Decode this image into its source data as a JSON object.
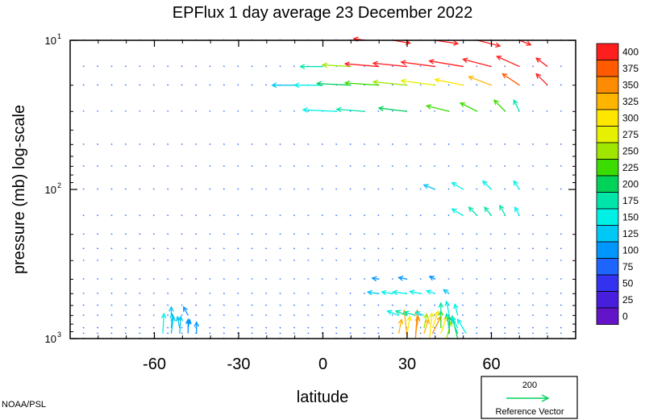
{
  "chart_data": {
    "type": "vector-field",
    "title": "EPFlux  1 day average  23 December  2022",
    "xlabel": "latitude",
    "ylabel": "pressure (mb)  log-scale",
    "x_ticks": [
      -60,
      -30,
      0,
      30,
      60
    ],
    "xlim": [
      -90,
      90
    ],
    "y_scale": "log",
    "y_ticks": [
      {
        "value": 10,
        "base": "10",
        "exp": "1"
      },
      {
        "value": 100,
        "base": "10",
        "exp": "2"
      },
      {
        "value": 1000,
        "base": "10",
        "exp": "3"
      }
    ],
    "ylim": [
      1000,
      10
    ],
    "levels": [
      1000,
      925,
      850,
      700,
      600,
      500,
      400,
      300,
      250,
      200,
      150,
      100,
      70,
      50,
      30,
      20,
      15,
      10
    ],
    "colorbar": {
      "labels": [
        "400",
        "375",
        "350",
        "325",
        "300",
        "275",
        "250",
        "225",
        "200",
        "175",
        "150",
        "125",
        "100",
        "75",
        "50",
        "25",
        "0"
      ],
      "colors": [
        "#ff1e1e",
        "#ff5a00",
        "#ff8c00",
        "#ffb400",
        "#ffe600",
        "#e6f000",
        "#a0e600",
        "#3cdc00",
        "#00d25a",
        "#00e6aa",
        "#00f0e6",
        "#00c8f5",
        "#0096ff",
        "#1e64ff",
        "#3232f0",
        "#461edc",
        "#6414c8"
      ]
    },
    "reference_vector": {
      "value": "200",
      "label": "Reference Vector"
    },
    "vectors": [
      {
        "lat": 30,
        "p": 1000,
        "u": -0.5,
        "v": 5,
        "mag": 320
      },
      {
        "lat": 33,
        "p": 1000,
        "u": 0.3,
        "v": 5,
        "mag": 340
      },
      {
        "lat": 38,
        "p": 1000,
        "u": 0.4,
        "v": 4.5,
        "mag": 310
      },
      {
        "lat": 44,
        "p": 1000,
        "u": 0.8,
        "v": 3,
        "mag": 260
      },
      {
        "lat": 48,
        "p": 1000,
        "u": -1,
        "v": 4,
        "mag": 200
      },
      {
        "lat": 27,
        "p": 925,
        "u": 0.5,
        "v": 2.5,
        "mag": 320
      },
      {
        "lat": 30,
        "p": 925,
        "u": 0.5,
        "v": 3,
        "mag": 300
      },
      {
        "lat": 33,
        "p": 925,
        "u": 0.5,
        "v": 3,
        "mag": 340
      },
      {
        "lat": 36,
        "p": 925,
        "u": 0.8,
        "v": 2.5,
        "mag": 330
      },
      {
        "lat": 39,
        "p": 925,
        "u": 1.5,
        "v": 3,
        "mag": 350
      },
      {
        "lat": 42,
        "p": 925,
        "u": 1,
        "v": 3,
        "mag": 290
      },
      {
        "lat": 45,
        "p": 925,
        "u": 0,
        "v": 3,
        "mag": 200
      },
      {
        "lat": 48,
        "p": 925,
        "u": -1,
        "v": 2.5,
        "mag": 180
      },
      {
        "lat": 51,
        "p": 925,
        "u": -1.5,
        "v": 2.5,
        "mag": 160
      },
      {
        "lat": 36,
        "p": 850,
        "u": 0.5,
        "v": 2.5,
        "mag": 260
      },
      {
        "lat": 39,
        "p": 850,
        "u": 1,
        "v": 3,
        "mag": 300
      },
      {
        "lat": 42,
        "p": 850,
        "u": 0,
        "v": 3,
        "mag": 220
      },
      {
        "lat": 45,
        "p": 850,
        "u": -0.5,
        "v": 2.5,
        "mag": 180
      },
      {
        "lat": 48,
        "p": 850,
        "u": -1,
        "v": 2,
        "mag": 160
      },
      {
        "lat": 42,
        "p": 700,
        "u": 0,
        "v": 2.2,
        "mag": 170
      },
      {
        "lat": 45,
        "p": 700,
        "u": -0.5,
        "v": 2.5,
        "mag": 160
      },
      {
        "lat": 48,
        "p": 700,
        "u": -0.5,
        "v": 2,
        "mag": 140
      },
      {
        "lat": 27,
        "p": 700,
        "u": -2,
        "v": 0.8,
        "mag": 160
      },
      {
        "lat": 30,
        "p": 700,
        "u": -2,
        "v": 0.8,
        "mag": 170
      },
      {
        "lat": 33,
        "p": 700,
        "u": -2,
        "v": 0.6,
        "mag": 170
      },
      {
        "lat": 36,
        "p": 700,
        "u": -1.5,
        "v": 0.6,
        "mag": 150
      },
      {
        "lat": -57,
        "p": 925,
        "u": 0.2,
        "v": 3.5,
        "mag": 140
      },
      {
        "lat": -54,
        "p": 925,
        "u": 0.4,
        "v": 3,
        "mag": 130
      },
      {
        "lat": -51,
        "p": 925,
        "u": 0.2,
        "v": 3,
        "mag": 120
      },
      {
        "lat": -48,
        "p": 925,
        "u": 0,
        "v": 2.5,
        "mag": 110
      },
      {
        "lat": -45,
        "p": 925,
        "u": 0,
        "v": 2,
        "mag": 100
      },
      {
        "lat": -54,
        "p": 850,
        "u": 0.2,
        "v": 2.5,
        "mag": 130
      },
      {
        "lat": -51,
        "p": 850,
        "u": -0.4,
        "v": 2,
        "mag": 120
      },
      {
        "lat": -48,
        "p": 850,
        "u": 0.3,
        "v": 1.5,
        "mag": 100
      },
      {
        "lat": -54,
        "p": 700,
        "u": 0,
        "v": 1.5,
        "mag": 120
      },
      {
        "lat": -48,
        "p": 700,
        "u": -0.8,
        "v": 1.5,
        "mag": 110
      },
      {
        "lat": 20,
        "p": 500,
        "u": -2,
        "v": 0.3,
        "mag": 130
      },
      {
        "lat": 25,
        "p": 500,
        "u": -2,
        "v": 0.3,
        "mag": 150
      },
      {
        "lat": 30,
        "p": 500,
        "u": -2.5,
        "v": 0.3,
        "mag": 160
      },
      {
        "lat": 35,
        "p": 500,
        "u": -2,
        "v": 0.4,
        "mag": 150
      },
      {
        "lat": 40,
        "p": 500,
        "u": -1.5,
        "v": 0.5,
        "mag": 140
      },
      {
        "lat": 45,
        "p": 500,
        "u": -1,
        "v": 0.7,
        "mag": 120
      },
      {
        "lat": 20,
        "p": 400,
        "u": -1.2,
        "v": 0.2,
        "mag": 100
      },
      {
        "lat": 30,
        "p": 400,
        "u": -1.5,
        "v": 0.3,
        "mag": 110
      },
      {
        "lat": 40,
        "p": 400,
        "u": -1,
        "v": 0.5,
        "mag": 100
      },
      {
        "lat": 50,
        "p": 150,
        "u": -2,
        "v": 1.2,
        "mag": 160
      },
      {
        "lat": 55,
        "p": 150,
        "u": -1.5,
        "v": 1.5,
        "mag": 170
      },
      {
        "lat": 60,
        "p": 150,
        "u": -1.2,
        "v": 1.5,
        "mag": 180
      },
      {
        "lat": 65,
        "p": 150,
        "u": -1,
        "v": 1.8,
        "mag": 170
      },
      {
        "lat": 70,
        "p": 150,
        "u": -0.8,
        "v": 1.5,
        "mag": 150
      },
      {
        "lat": 40,
        "p": 100,
        "u": -2,
        "v": 0.8,
        "mag": 130
      },
      {
        "lat": 50,
        "p": 100,
        "u": -2,
        "v": 1.2,
        "mag": 140
      },
      {
        "lat": 60,
        "p": 100,
        "u": -1.5,
        "v": 1.5,
        "mag": 150
      },
      {
        "lat": 70,
        "p": 100,
        "u": -1,
        "v": 1.5,
        "mag": 140
      },
      {
        "lat": 5,
        "p": 30,
        "u": -6,
        "v": 0.3,
        "mag": 160
      },
      {
        "lat": 15,
        "p": 30,
        "u": -5,
        "v": 0.4,
        "mag": 170
      },
      {
        "lat": 30,
        "p": 30,
        "u": -5,
        "v": 0.6,
        "mag": 200
      },
      {
        "lat": 45,
        "p": 30,
        "u": -4,
        "v": 1,
        "mag": 220
      },
      {
        "lat": 55,
        "p": 30,
        "u": -3,
        "v": 1.5,
        "mag": 230
      },
      {
        "lat": 65,
        "p": 30,
        "u": -2,
        "v": 2,
        "mag": 220
      },
      {
        "lat": 70,
        "p": 30,
        "u": -1,
        "v": 2,
        "mag": 180
      },
      {
        "lat": -10,
        "p": 20,
        "u": -4,
        "v": 0,
        "mag": 120
      },
      {
        "lat": 0,
        "p": 20,
        "u": -5,
        "v": 0,
        "mag": 140
      },
      {
        "lat": 10,
        "p": 20,
        "u": -6,
        "v": 0.3,
        "mag": 200
      },
      {
        "lat": 20,
        "p": 20,
        "u": -6,
        "v": 0.4,
        "mag": 230
      },
      {
        "lat": 30,
        "p": 20,
        "u": -6,
        "v": 0.6,
        "mag": 260
      },
      {
        "lat": 40,
        "p": 20,
        "u": -6,
        "v": 0.8,
        "mag": 280
      },
      {
        "lat": 50,
        "p": 20,
        "u": -5,
        "v": 1,
        "mag": 300
      },
      {
        "lat": 60,
        "p": 20,
        "u": -4,
        "v": 1.5,
        "mag": 330
      },
      {
        "lat": 70,
        "p": 20,
        "u": -3,
        "v": 2,
        "mag": 380
      },
      {
        "lat": 80,
        "p": 20,
        "u": -2,
        "v": 2,
        "mag": 400
      },
      {
        "lat": 0,
        "p": 15,
        "u": -4,
        "v": 0,
        "mag": 180
      },
      {
        "lat": 10,
        "p": 15,
        "u": -5,
        "v": 0.3,
        "mag": 260
      },
      {
        "lat": 20,
        "p": 15,
        "u": -6,
        "v": 0.5,
        "mag": 400
      },
      {
        "lat": 30,
        "p": 15,
        "u": -6,
        "v": 0.6,
        "mag": 400
      },
      {
        "lat": 40,
        "p": 15,
        "u": -6,
        "v": 0.8,
        "mag": 400
      },
      {
        "lat": 50,
        "p": 15,
        "u": -6,
        "v": 1,
        "mag": 400
      },
      {
        "lat": 60,
        "p": 15,
        "u": -5,
        "v": 1.3,
        "mag": 400
      },
      {
        "lat": 70,
        "p": 15,
        "u": -4,
        "v": 1.8,
        "mag": 400
      },
      {
        "lat": 80,
        "p": 15,
        "u": -2,
        "v": 1.5,
        "mag": 400
      },
      {
        "lat": 15,
        "p": 10,
        "u": -2,
        "v": 0.3,
        "mag": 400
      },
      {
        "lat": 25,
        "p": 10,
        "u": 3,
        "v": -0.5,
        "mag": 400
      },
      {
        "lat": 40,
        "p": 10,
        "u": 4,
        "v": -0.6,
        "mag": 400
      },
      {
        "lat": 55,
        "p": 10,
        "u": 4,
        "v": -1,
        "mag": 400
      },
      {
        "lat": 70,
        "p": 10,
        "u": 2,
        "v": -0.8,
        "mag": 400
      }
    ]
  },
  "credit": "NOAA/PSL"
}
